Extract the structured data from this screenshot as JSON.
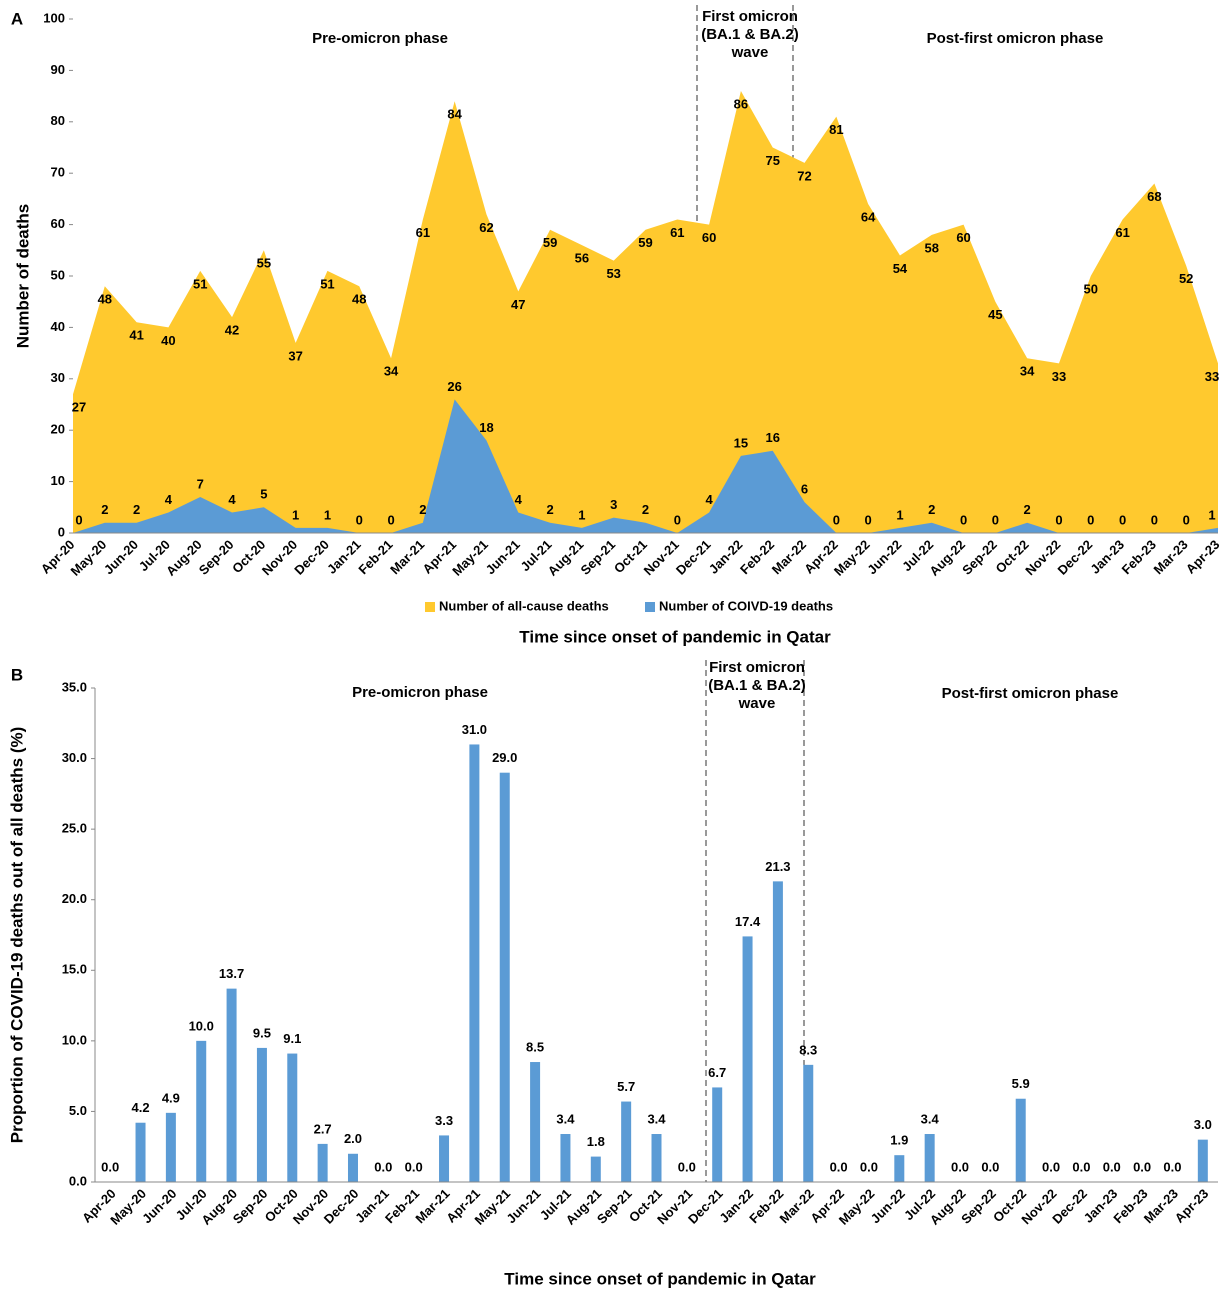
{
  "chart_data": [
    {
      "type": "area",
      "panel": "A",
      "phase_labels": [
        "Pre-omicron phase",
        "First omicron",
        "(BA.1 & BA.2)",
        "wave",
        "Post-first omicron phase"
      ],
      "y_label": "Number of deaths",
      "x_label": "Time since onset of pandemic in Qatar",
      "categories": [
        "Apr-20",
        "May-20",
        "Jun-20",
        "Jul-20",
        "Aug-20",
        "Sep-20",
        "Oct-20",
        "Nov-20",
        "Dec-20",
        "Jan-21",
        "Feb-21",
        "Mar-21",
        "Apr-21",
        "May-21",
        "Jun-21",
        "Jul-21",
        "Aug-21",
        "Sep-21",
        "Oct-21",
        "Nov-21",
        "Dec-21",
        "Jan-22",
        "Feb-22",
        "Mar-22",
        "Apr-22",
        "May-22",
        "Jun-22",
        "Jul-22",
        "Aug-22",
        "Sep-22",
        "Oct-22",
        "Nov-22",
        "Dec-22",
        "Jan-23",
        "Feb-23",
        "Mar-23",
        "Apr-23"
      ],
      "series": [
        {
          "name": "Number of all-cause deaths",
          "color": "#ffc92e",
          "values": [
            27,
            48,
            41,
            40,
            51,
            42,
            55,
            37,
            51,
            48,
            34,
            61,
            84,
            62,
            47,
            59,
            56,
            53,
            59,
            61,
            60,
            86,
            75,
            72,
            81,
            64,
            54,
            58,
            60,
            45,
            34,
            33,
            50,
            61,
            68,
            52,
            33
          ]
        },
        {
          "name": "Number of COIVD-19 deaths",
          "color": "#5b9bd5",
          "values": [
            0,
            2,
            2,
            4,
            7,
            4,
            5,
            1,
            1,
            0,
            0,
            2,
            26,
            18,
            4,
            2,
            1,
            3,
            2,
            0,
            4,
            15,
            16,
            6,
            0,
            0,
            1,
            2,
            0,
            0,
            2,
            0,
            0,
            0,
            0,
            0,
            1
          ]
        }
      ],
      "ylim": [
        0,
        100
      ],
      "yticks": [
        0,
        10,
        20,
        30,
        40,
        50,
        60,
        70,
        80,
        90,
        100
      ],
      "legend": "bottom"
    },
    {
      "type": "bar",
      "panel": "B",
      "phase_labels": [
        "Pre-omicron phase",
        "First omicron",
        "(BA.1 & BA.2)",
        "wave",
        "Post-first omicron phase"
      ],
      "y_label": "Proportion of COVID-19 deaths out of all deaths (%)",
      "x_label": "Time since onset of pandemic in Qatar",
      "categories": [
        "Apr-20",
        "May-20",
        "Jun-20",
        "Jul-20",
        "Aug-20",
        "Sep-20",
        "Oct-20",
        "Nov-20",
        "Dec-20",
        "Jan-21",
        "Feb-21",
        "Mar-21",
        "Apr-21",
        "May-21",
        "Jun-21",
        "Jul-21",
        "Aug-21",
        "Sep-21",
        "Oct-21",
        "Nov-21",
        "Dec-21",
        "Jan-22",
        "Feb-22",
        "Mar-22",
        "Apr-22",
        "May-22",
        "Jun-22",
        "Jul-22",
        "Aug-22",
        "Sep-22",
        "Oct-22",
        "Nov-22",
        "Dec-22",
        "Jan-23",
        "Feb-23",
        "Mar-23",
        "Apr-23"
      ],
      "values": [
        0,
        4.2,
        4.9,
        10,
        13.7,
        9.5,
        9.1,
        2.7,
        2,
        0,
        0,
        3.3,
        31,
        29,
        8.5,
        3.4,
        1.8,
        5.7,
        3.4,
        0,
        6.7,
        17.4,
        21.3,
        8.3,
        0,
        0,
        1.9,
        3.4,
        0,
        0,
        5.9,
        0,
        0,
        0,
        0,
        0,
        3
      ],
      "value_labels": [
        "0.0",
        "4.2",
        "4.9",
        "10.0",
        "13.7",
        "9.5",
        "9.1",
        "2.7",
        "2.0",
        "0.0",
        "0.0",
        "3.3",
        "31.0",
        "29.0",
        "8.5",
        "3.4",
        "1.8",
        "5.7",
        "3.4",
        "0.0",
        "6.7",
        "17.4",
        "21.3",
        "8.3",
        "0.0",
        "0.0",
        "1.9",
        "3.4",
        "0.0",
        "0.0",
        "5.9",
        "0.0",
        "0.0",
        "0.0",
        "0.0",
        "0.0",
        "3.0"
      ],
      "color": "#5b9bd5",
      "ylim": [
        0,
        35
      ],
      "yticks": [
        {
          "value": 0,
          "label": "0.0"
        },
        {
          "value": 5,
          "label": "5.0"
        },
        {
          "value": 10,
          "label": "10.0"
        },
        {
          "value": 15,
          "label": "15.0"
        },
        {
          "value": 20,
          "label": "20.0"
        },
        {
          "value": 25,
          "label": "25.0"
        },
        {
          "value": 30,
          "label": "30.0"
        },
        {
          "value": 35,
          "label": "35.0"
        }
      ]
    }
  ]
}
